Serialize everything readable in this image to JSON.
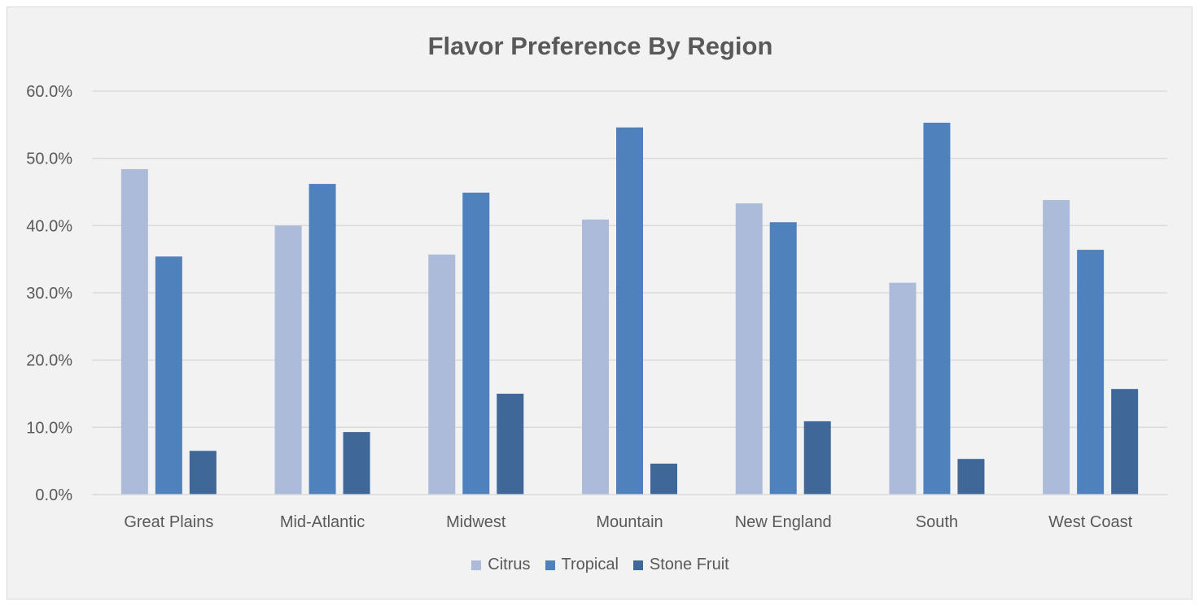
{
  "chart_data": {
    "type": "bar",
    "title": "Flavor Preference By Region",
    "xlabel": "",
    "ylabel": "",
    "categories": [
      "Great Plains",
      "Mid-Atlantic",
      "Midwest",
      "Mountain",
      "New England",
      "South",
      "West Coast"
    ],
    "series": [
      {
        "name": "Citrus",
        "color": "#abbbd9",
        "values": [
          48.4,
          40.0,
          35.7,
          40.9,
          43.3,
          31.5,
          43.8
        ]
      },
      {
        "name": "Tropical",
        "color": "#4f81bd",
        "values": [
          35.4,
          46.2,
          44.9,
          54.6,
          40.5,
          55.3,
          36.4
        ]
      },
      {
        "name": "Stone Fruit",
        "color": "#3f6899",
        "values": [
          6.5,
          9.3,
          15.0,
          4.6,
          10.9,
          5.3,
          15.7
        ]
      }
    ],
    "ylim": [
      0,
      60
    ],
    "yticks": [
      "0.0%",
      "10.0%",
      "20.0%",
      "30.0%",
      "40.0%",
      "50.0%",
      "60.0%"
    ],
    "grid": true,
    "legend_position": "bottom"
  }
}
